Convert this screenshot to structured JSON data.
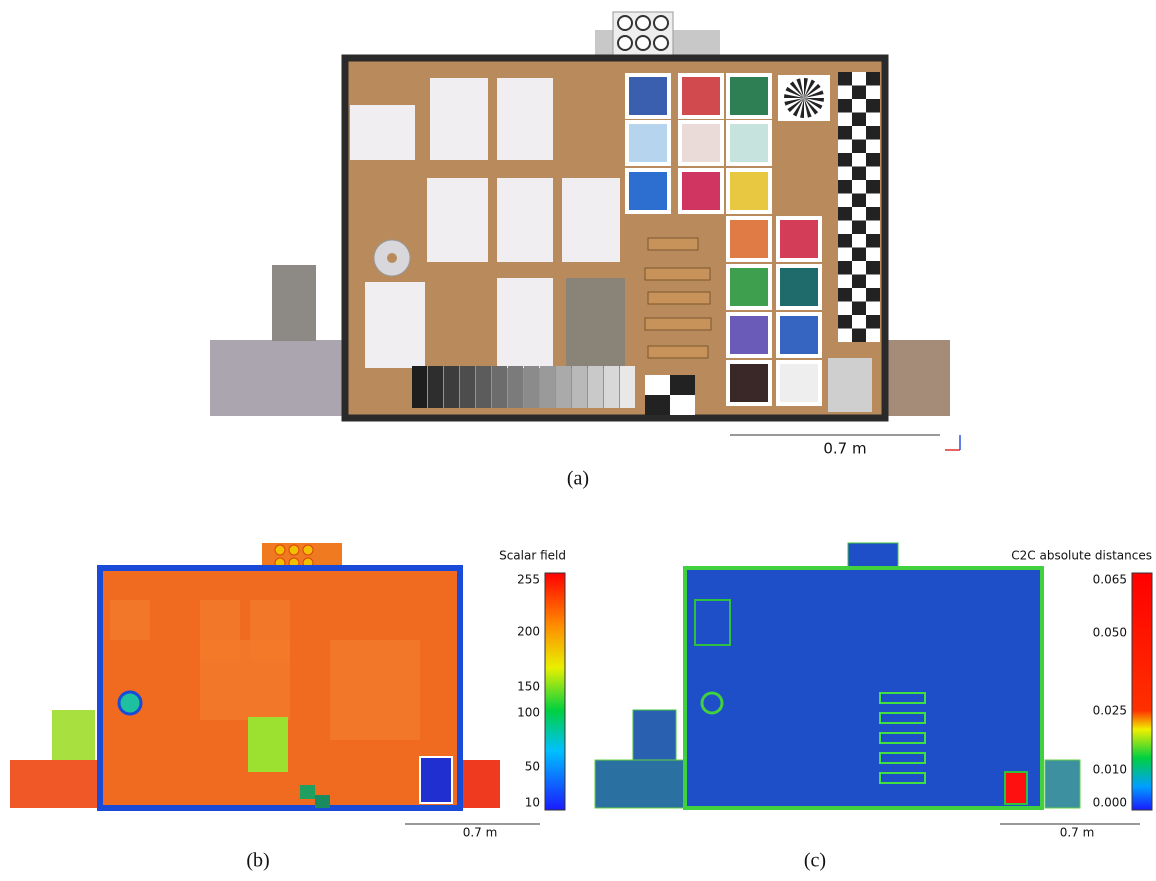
{
  "panels": [
    {
      "label": "(a)",
      "scale_label": "0.7 m"
    },
    {
      "label": "(b)",
      "scale_label": "0.7 m",
      "colorbar": {
        "title": "Scalar field",
        "ticks": [
          "255",
          "200",
          "150",
          "100",
          "50",
          "10"
        ]
      }
    },
    {
      "label": "(c)",
      "scale_label": "0.7 m",
      "colorbar": {
        "title": "C2C absolute distances",
        "ticks": [
          "0.065",
          "0.050",
          "0.025",
          "0.010",
          "0.000"
        ]
      }
    }
  ]
}
